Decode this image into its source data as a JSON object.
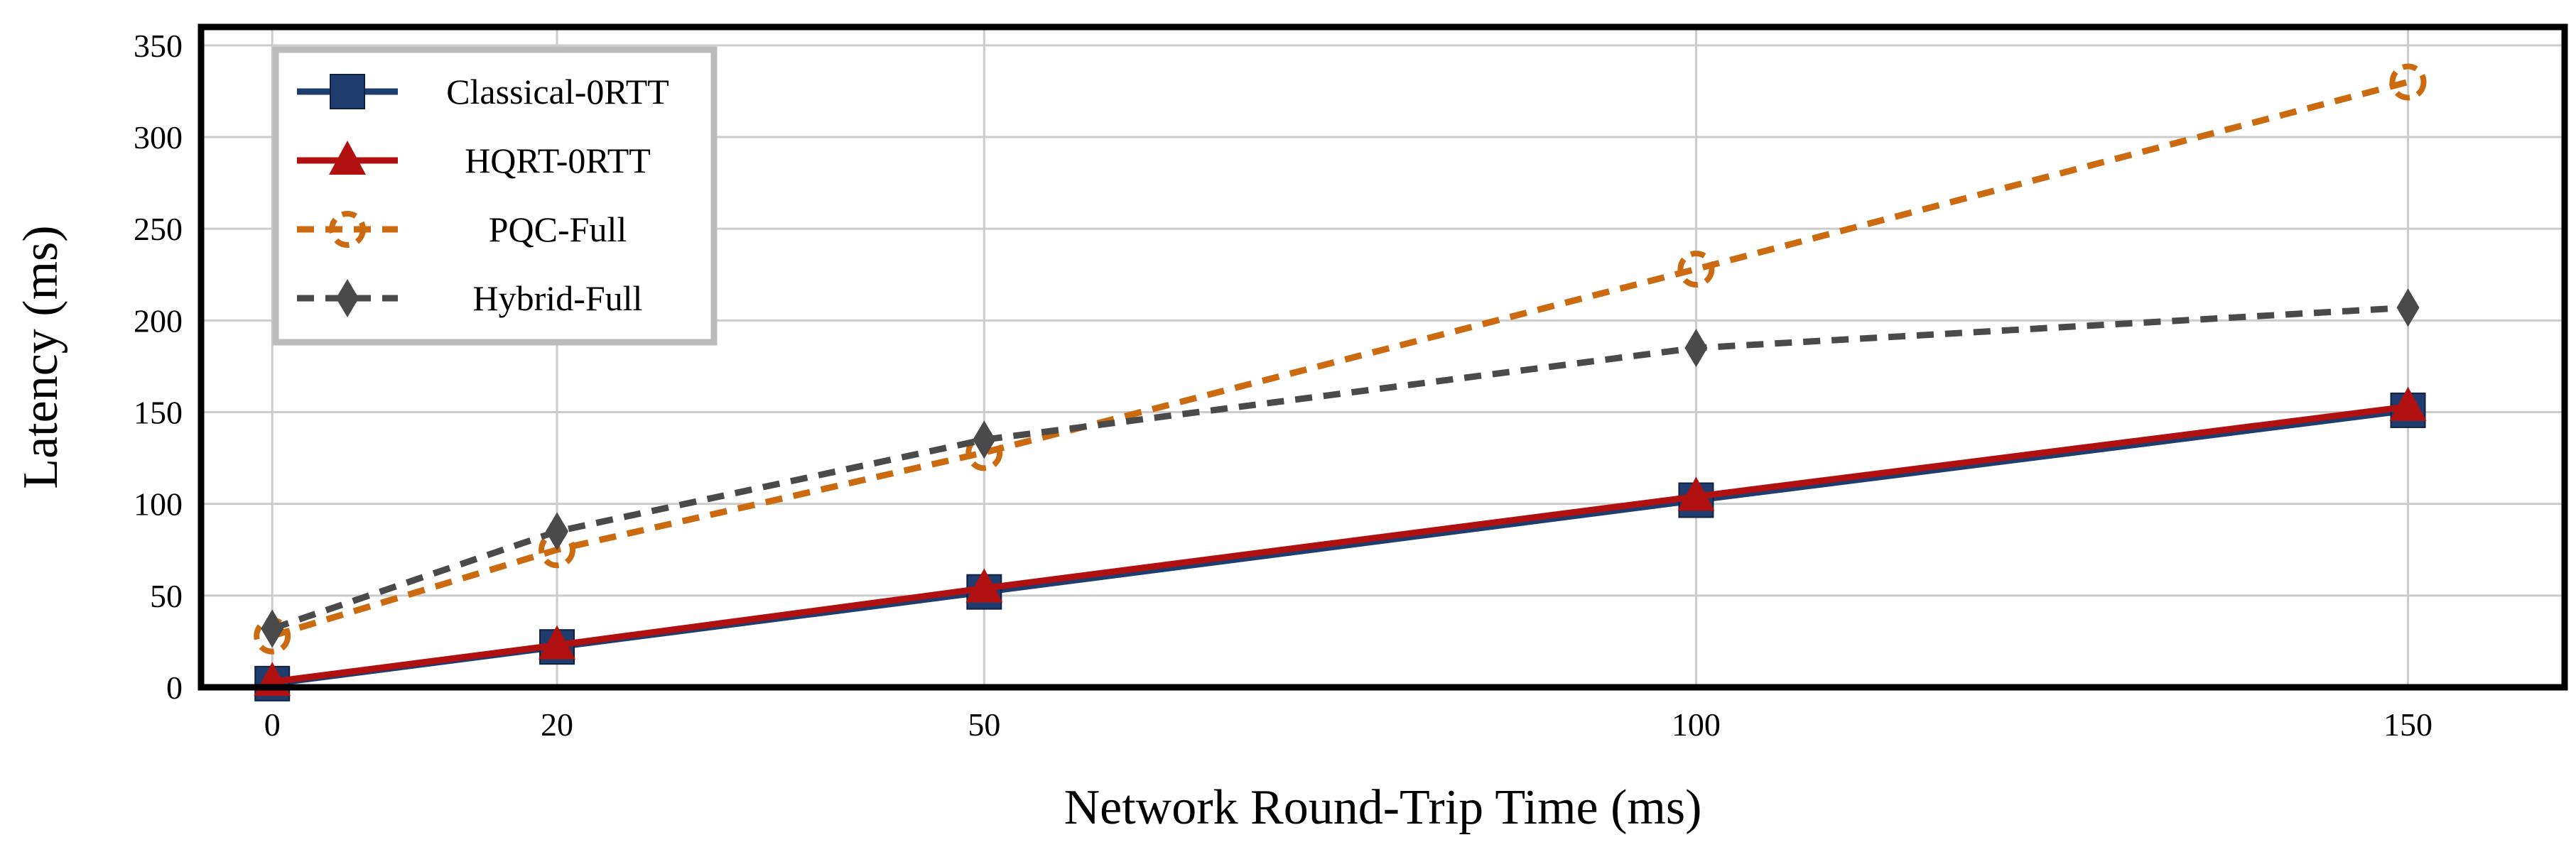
{
  "chart_data": {
    "type": "line",
    "title": "",
    "xlabel": "Network Round-Trip Time (ms)",
    "ylabel": "Latency (ms)",
    "x": [
      0,
      20,
      50,
      100,
      150
    ],
    "x_ticks": [
      0,
      20,
      50,
      100,
      150
    ],
    "y_ticks": [
      0,
      50,
      100,
      150,
      200,
      250,
      300,
      350
    ],
    "xlim": [
      -5,
      161
    ],
    "ylim": [
      0,
      360
    ],
    "grid": true,
    "legend_position": "top-left",
    "series": [
      {
        "name": "Classical-0RTT",
        "values": [
          2,
          22,
          52,
          102,
          151
        ],
        "color": "#1f3d6e",
        "line_style": "solid",
        "marker": "square"
      },
      {
        "name": "HQRT-0RTT",
        "values": [
          3,
          23,
          54,
          104,
          153
        ],
        "color": "#b01010",
        "line_style": "solid",
        "marker": "triangle"
      },
      {
        "name": "PQC-Full",
        "values": [
          28,
          75,
          128,
          228,
          330
        ],
        "color": "#cc6a10",
        "line_style": "dashed",
        "marker": "circle"
      },
      {
        "name": "Hybrid-Full",
        "values": [
          32,
          85,
          135,
          185,
          207
        ],
        "color": "#4a4a4a",
        "line_style": "dashed",
        "marker": "diamond"
      }
    ]
  }
}
